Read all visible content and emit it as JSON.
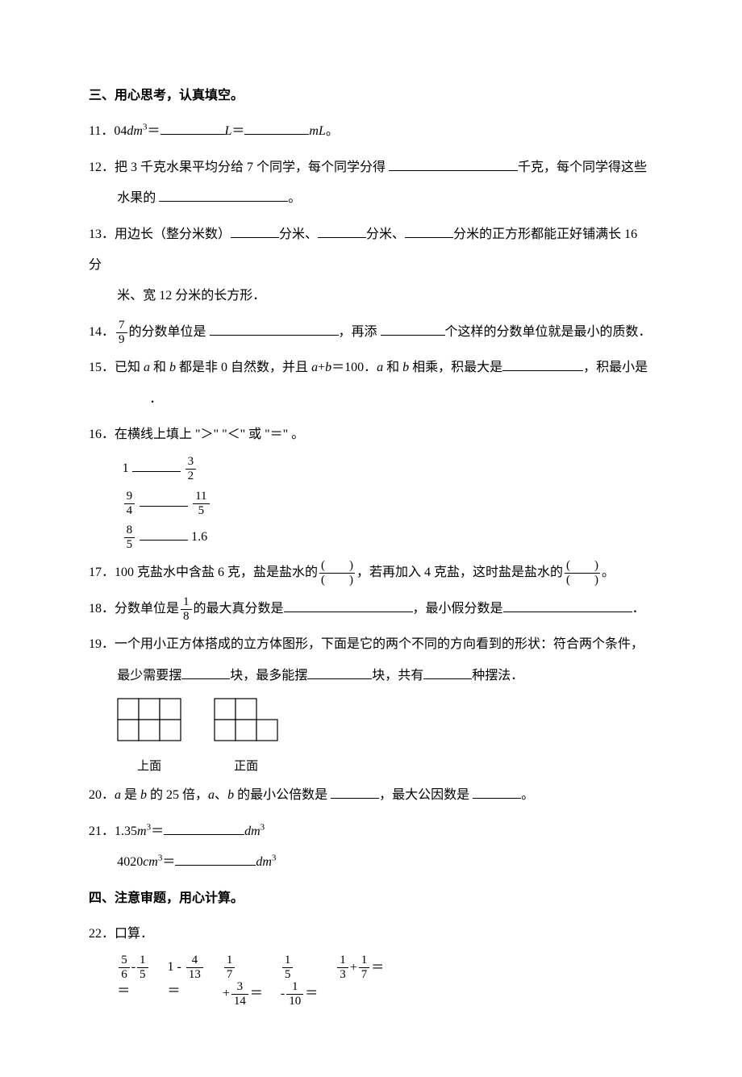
{
  "colors": {
    "text": "#000000",
    "bg": "#ffffff",
    "line": "#000000"
  },
  "typography": {
    "base_fontsize": 16,
    "line_height": 2.4,
    "font_family": "SimSun"
  },
  "section3": {
    "title": "三、用心思考，认真填空。",
    "q11": {
      "num": "11．",
      "p1": "04",
      "var": "dm",
      "sup": "3",
      "eq": "＝",
      "unit1": "L",
      "eq2": "＝",
      "unit2": "mL",
      "end": "。"
    },
    "q12": {
      "num": "12．",
      "t1": "把 3 千克水果平均分给 7 个同学，每个同学分得 ",
      "t2": "千克，每个同学得这些",
      "t3": "水果的 ",
      "t4": "。"
    },
    "q13": {
      "num": "13．",
      "t1": "用边长（整分米数）",
      "t2": "分米、",
      "t3": "分米、",
      "t4": "分米的正方形都能正好铺满长 16 分",
      "t5": "米、宽 12 分米的长方形．"
    },
    "q14": {
      "num": "14．",
      "frac": {
        "n": "7",
        "d": "9"
      },
      "t1": "的分数单位是 ",
      "t2": "，再添 ",
      "t3": "个这样的分数单位就是最小的质数．"
    },
    "q15": {
      "num": "15．",
      "t1": "已知 ",
      "a": "a",
      "t2": " 和 ",
      "b": "b",
      "t3": " 都是非 0 自然数，并且 ",
      "expr": "a",
      "plus": "+",
      "expr2": "b",
      "eq": "＝100．",
      "t4": " 和 ",
      "t5": " 相乘，积最大是",
      "t6": "，积最小是",
      "t7": "．"
    },
    "q16": {
      "num": "16．",
      "t1": "在横线上填上 \"＞\" \"＜\" 或 \"＝\" 。",
      "rows": [
        {
          "left_plain": "1",
          "right": {
            "n": "3",
            "d": "2"
          }
        },
        {
          "left": {
            "n": "9",
            "d": "4"
          },
          "right": {
            "n": "11",
            "d": "5"
          }
        },
        {
          "left": {
            "n": "8",
            "d": "5"
          },
          "right_plain": "1.6"
        }
      ]
    },
    "q17": {
      "num": "17．",
      "t1": "100 克盐水中含盐 6 克，盐是盐水的",
      "t2": "，若再加入 4 克盐，这时盐是盐水的",
      "t3": "。",
      "pf": {
        "top": "(　　)",
        "bot": "(　　)"
      }
    },
    "q18": {
      "num": "18．",
      "t1": "分数单位是",
      "frac": {
        "n": "1",
        "d": "8"
      },
      "t2": "的最大真分数是",
      "t3": "，最小假分数是",
      "t4": "．"
    },
    "q19": {
      "num": "19．",
      "t1": "一个用小正方体搭成的立方体图形，下面是它的两个不同的方向看到的形状：符合两个条件，",
      "t2": "最少需要摆",
      "t3": "块，最多能摆",
      "t4": "块，共有",
      "t5": "种摆法．",
      "dia1": {
        "label": "上面",
        "cols": 3,
        "rows": 2,
        "cell": 26,
        "missing": []
      },
      "dia2": {
        "label": "正面",
        "cols": 3,
        "rows": 2,
        "cell": 26,
        "missing": [
          [
            0,
            2
          ]
        ]
      }
    },
    "q20": {
      "num": "20．",
      "a": "a",
      "t1": " 是 ",
      "b": "b",
      "t2": " 的 25 倍，",
      "t3": "、",
      "t4": " 的最小公倍数是 ",
      "t5": "，最大公因数是 ",
      "t6": "。"
    },
    "q21": {
      "num": "21．",
      "v1": "1.35",
      "u1": "m",
      "sup": "3",
      "eq": "＝",
      "u2": "dm",
      "v2": "4020",
      "u3": "cm",
      "u4": "dm"
    }
  },
  "section4": {
    "title": "四、注意审题，用心计算。",
    "q22": {
      "num": "22．",
      "t1": "口算．",
      "items": {
        "a": {
          "l": {
            "n": "5",
            "d": "6"
          },
          "op": "-",
          "r": {
            "n": "1",
            "d": "5"
          }
        },
        "b_pre": "1 -",
        "b": {
          "l": {
            "n": "4",
            "d": "13"
          }
        },
        "c": {
          "n": "1",
          "d": "7"
        },
        "d": {
          "n": "1",
          "d": "5"
        },
        "e": {
          "l": {
            "n": "1",
            "d": "3"
          },
          "op": "+",
          "r": {
            "n": "1",
            "d": "7"
          },
          "eq": "＝"
        },
        "f_pre": "+",
        "f": {
          "n": "3",
          "d": "14"
        },
        "f_eq": "＝",
        "g_pre": "-",
        "g": {
          "n": "1",
          "d": "10"
        },
        "g_eq": "＝",
        "eq": "＝"
      }
    }
  }
}
